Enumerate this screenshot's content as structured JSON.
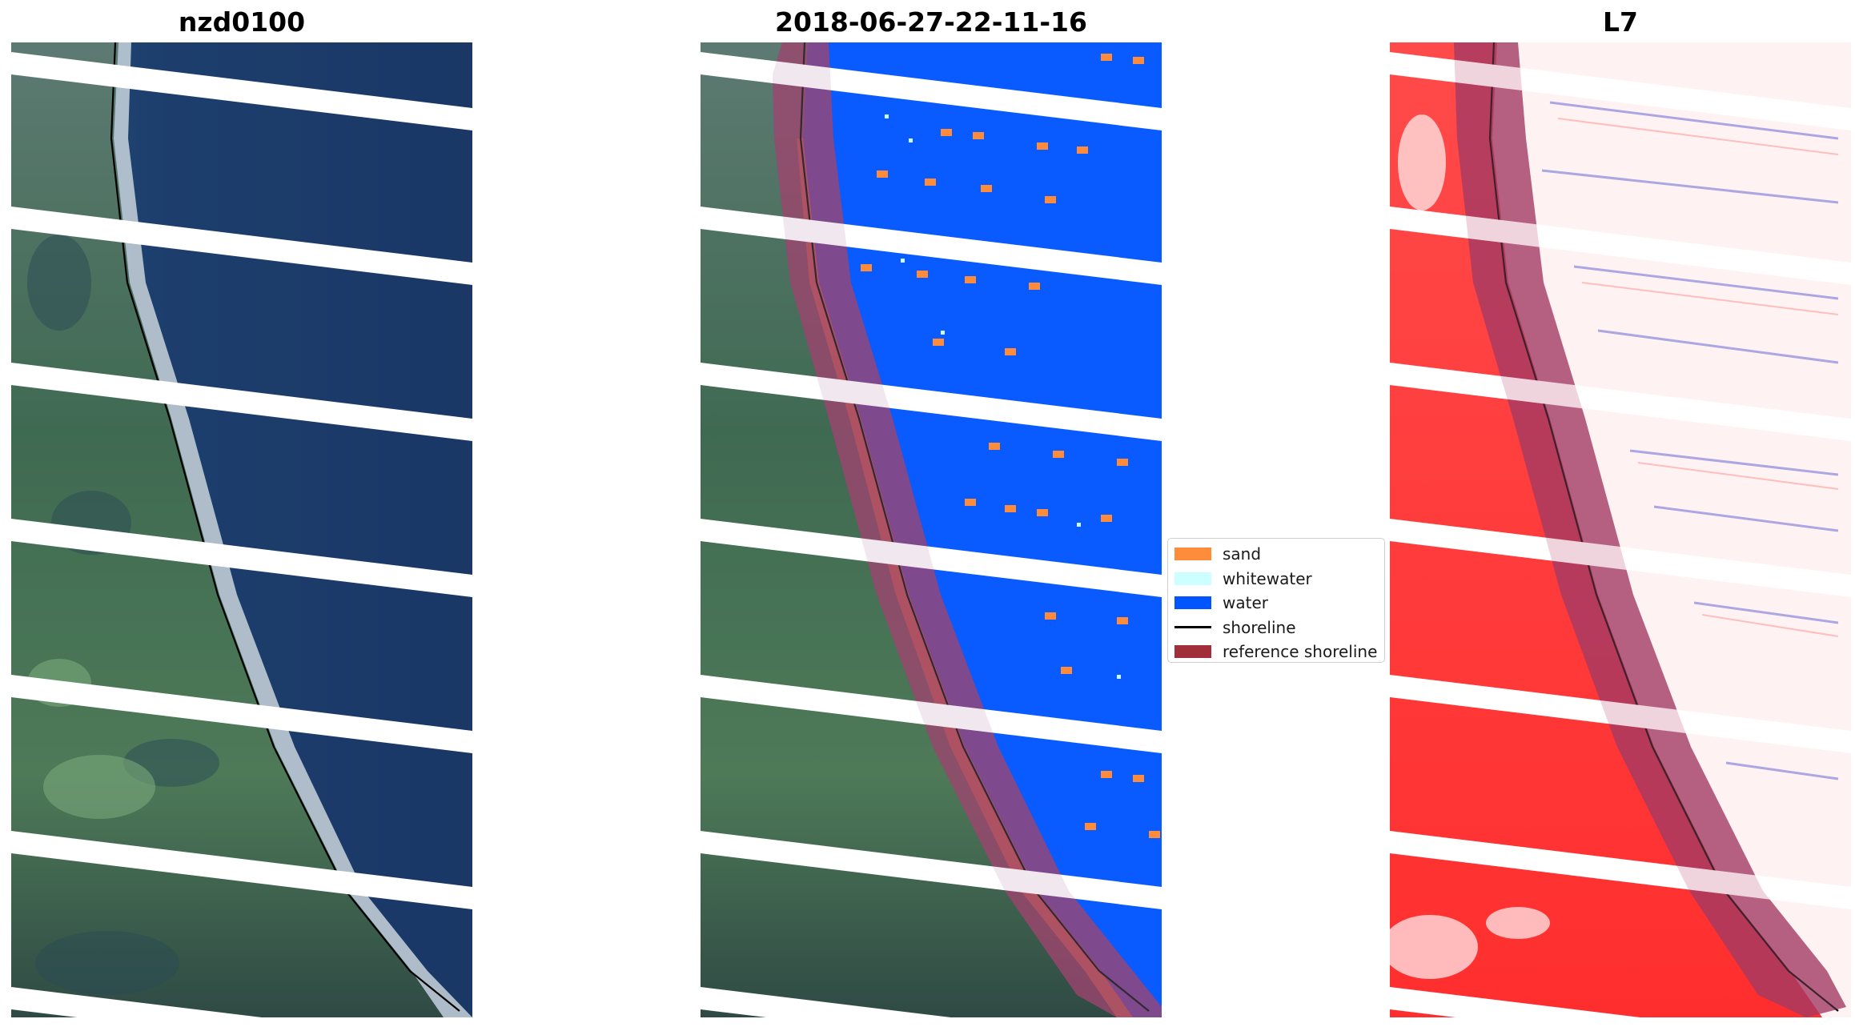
{
  "titles": {
    "left": "nzd0100",
    "middle": "2018-06-27-22-11-16",
    "right": "L7"
  },
  "legend": {
    "items": [
      {
        "label": "sand",
        "color": "#ff8c3a",
        "kind": "patch"
      },
      {
        "label": "whitewater",
        "color": "#ccffff",
        "kind": "patch"
      },
      {
        "label": "water",
        "color": "#0055ff",
        "kind": "patch"
      },
      {
        "label": "shoreline",
        "color": "#000000",
        "kind": "line"
      },
      {
        "label": "reference shoreline",
        "color": "#a12f3a",
        "kind": "patch"
      }
    ]
  },
  "colors": {
    "ocean_rgb": "#1e3d6e",
    "land_rgb": "#3e5f4e",
    "beach": "#c9d4dc",
    "water_class": "#0a5bff",
    "reference_buffer": "#8b1a4a",
    "index_red": "#ff3a3a",
    "stripe_gap": "#ffffff"
  }
}
